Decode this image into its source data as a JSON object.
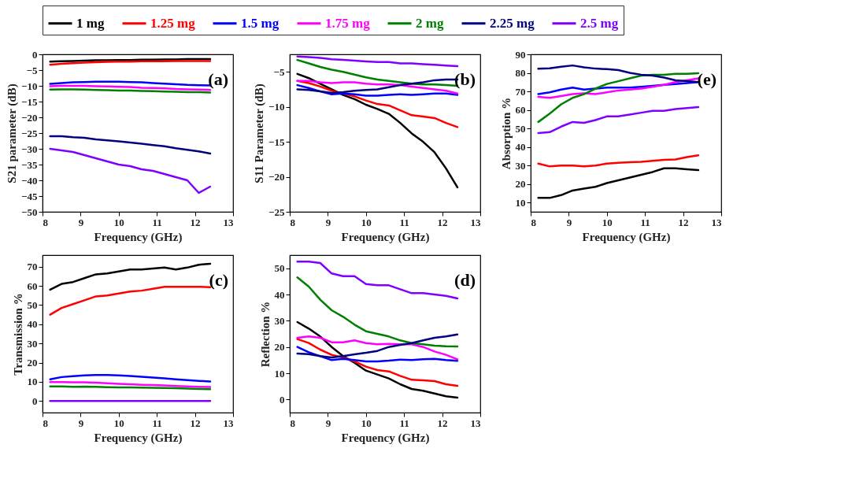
{
  "chart_data": [
    {
      "type": "line",
      "xlabel": "Frequency (GHz)",
      "ylabel": "S21 parameter (dB)",
      "annotations": [
        "(a)"
      ],
      "legend": "top",
      "grid": false,
      "xlim": [
        8,
        13
      ],
      "xticks": [
        8,
        9,
        10,
        11,
        12,
        13
      ],
      "ylim": [
        -50,
        0
      ],
      "yticks": [
        -50,
        -45,
        -40,
        -35,
        -30,
        -25,
        -20,
        -15,
        -10,
        -5,
        0
      ],
      "x": [
        8.2,
        8.5,
        8.8,
        9.1,
        9.4,
        9.7,
        10.0,
        10.3,
        10.6,
        10.9,
        11.2,
        11.5,
        11.8,
        12.1,
        12.4
      ],
      "series": [
        {
          "name": "1 mg",
          "color": "#000000",
          "values": [
            -2.3,
            -2.2,
            -2.1,
            -2.0,
            -1.9,
            -1.9,
            -1.8,
            -1.8,
            -1.7,
            -1.7,
            -1.6,
            -1.6,
            -1.5,
            -1.5,
            -1.5
          ]
        },
        {
          "name": "1.25 mg",
          "color": "#ff0000",
          "values": [
            -3.3,
            -3.0,
            -2.8,
            -2.6,
            -2.5,
            -2.4,
            -2.3,
            -2.3,
            -2.2,
            -2.2,
            -2.2,
            -2.1,
            -2.1,
            -2.1,
            -2.1
          ]
        },
        {
          "name": "1.5 mg",
          "color": "#0000ff",
          "values": [
            -9.4,
            -9.1,
            -8.9,
            -8.8,
            -8.7,
            -8.7,
            -8.7,
            -8.8,
            -8.9,
            -9.1,
            -9.3,
            -9.5,
            -9.7,
            -9.8,
            -9.9
          ]
        },
        {
          "name": "1.75 mg",
          "color": "#ff00ff",
          "values": [
            -10.1,
            -10.0,
            -10.0,
            -10.0,
            -10.1,
            -10.2,
            -10.3,
            -10.4,
            -10.6,
            -10.7,
            -10.8,
            -11.0,
            -11.1,
            -11.2,
            -11.3
          ]
        },
        {
          "name": "2 mg",
          "color": "#008000",
          "values": [
            -11.2,
            -11.1,
            -11.1,
            -11.2,
            -11.3,
            -11.4,
            -11.5,
            -11.5,
            -11.6,
            -11.7,
            -11.8,
            -11.9,
            -12.0,
            -12.0,
            -12.1
          ]
        },
        {
          "name": "2.25 mg",
          "color": "#000080",
          "values": [
            -26,
            -26,
            -26.3,
            -26.5,
            -27,
            -27.3,
            -27.6,
            -28,
            -28.4,
            -28.8,
            -29.2,
            -29.8,
            -30.3,
            -30.8,
            -31.5
          ]
        },
        {
          "name": "2.5 mg",
          "color": "#8000ff",
          "values": [
            -30,
            -30.5,
            -31,
            -32,
            -33,
            -34,
            -35,
            -35.5,
            -36.5,
            -37,
            -38,
            -39,
            -40,
            -44,
            -42
          ]
        }
      ]
    },
    {
      "type": "line",
      "xlabel": "Frequency (GHz)",
      "ylabel": "S11 Parameter (dB)",
      "annotations": [
        "(b)"
      ],
      "grid": false,
      "xlim": [
        8,
        13
      ],
      "xticks": [
        8,
        9,
        10,
        11,
        12,
        13
      ],
      "ylim": [
        -25,
        -2.5
      ],
      "yticks": [
        -25,
        -20,
        -15,
        -10,
        -5
      ],
      "x": [
        8.2,
        8.5,
        8.8,
        9.1,
        9.4,
        9.7,
        10.0,
        10.3,
        10.6,
        10.9,
        11.2,
        11.5,
        11.8,
        12.1,
        12.4
      ],
      "series": [
        {
          "color": "#000000",
          "values": [
            -5.3,
            -5.9,
            -6.7,
            -7.5,
            -8.3,
            -8.9,
            -9.7,
            -10.3,
            -11.0,
            -12.3,
            -13.8,
            -15.0,
            -16.5,
            -18.8,
            -21.5
          ]
        },
        {
          "color": "#ff0000",
          "values": [
            -6.3,
            -6.6,
            -7.1,
            -7.7,
            -8.1,
            -8.5,
            -9.1,
            -9.6,
            -9.8,
            -10.5,
            -11.2,
            -11.4,
            -11.6,
            -12.3,
            -12.9
          ]
        },
        {
          "color": "#0000ff",
          "values": [
            -6.9,
            -7.3,
            -7.8,
            -8.2,
            -8.1,
            -8.2,
            -8.4,
            -8.4,
            -8.3,
            -8.2,
            -8.3,
            -8.2,
            -8.1,
            -8.1,
            -8.3
          ]
        },
        {
          "color": "#ff00ff",
          "values": [
            -6.3,
            -6.3,
            -6.5,
            -6.6,
            -6.5,
            -6.5,
            -6.7,
            -6.8,
            -6.8,
            -6.9,
            -7.1,
            -7.3,
            -7.5,
            -7.7,
            -8.1
          ]
        },
        {
          "color": "#008000",
          "values": [
            -3.3,
            -3.8,
            -4.3,
            -4.7,
            -5.0,
            -5.4,
            -5.8,
            -6.1,
            -6.3,
            -6.5,
            -6.7,
            -6.8,
            -6.8,
            -6.9,
            -7.0
          ]
        },
        {
          "color": "#000080",
          "values": [
            -7.5,
            -7.6,
            -7.8,
            -8.0,
            -7.9,
            -7.7,
            -7.6,
            -7.5,
            -7.2,
            -6.9,
            -6.7,
            -6.5,
            -6.2,
            -6.1,
            -6.1
          ]
        },
        {
          "color": "#8000ff",
          "values": [
            -2.8,
            -2.9,
            -3.0,
            -3.2,
            -3.3,
            -3.4,
            -3.5,
            -3.6,
            -3.6,
            -3.8,
            -3.8,
            -3.9,
            -4.0,
            -4.1,
            -4.2
          ]
        }
      ]
    },
    {
      "type": "line",
      "xlabel": "Frequency (GHz)",
      "ylabel": "Transmission %",
      "annotations": [
        "(c)"
      ],
      "grid": false,
      "xlim": [
        8,
        13
      ],
      "xticks": [
        8,
        9,
        10,
        11,
        12,
        13
      ],
      "ylim": [
        -6,
        76
      ],
      "yticks": [
        0,
        10,
        20,
        30,
        40,
        50,
        60,
        70
      ],
      "x": [
        8.2,
        8.5,
        8.8,
        9.1,
        9.4,
        9.7,
        10.0,
        10.3,
        10.6,
        10.9,
        11.2,
        11.5,
        11.8,
        12.1,
        12.4
      ],
      "series": [
        {
          "color": "#000000",
          "values": [
            58,
            61,
            62,
            64,
            66,
            66.5,
            67.5,
            68.5,
            68.5,
            69,
            69.5,
            68.5,
            69.5,
            71,
            71.5
          ]
        },
        {
          "color": "#ff0000",
          "values": [
            45,
            48.5,
            50.5,
            52.5,
            54.5,
            55,
            56,
            57,
            57.5,
            58.5,
            59.5,
            59.5,
            59.5,
            59.5,
            59.3
          ]
        },
        {
          "color": "#0000ff",
          "values": [
            11.3,
            12.5,
            13,
            13.4,
            13.6,
            13.6,
            13.4,
            13.1,
            12.7,
            12.2,
            11.8,
            11.3,
            10.9,
            10.5,
            10.2
          ]
        },
        {
          "color": "#ff00ff",
          "values": [
            9.9,
            9.9,
            9.8,
            9.8,
            9.6,
            9.3,
            9.0,
            8.8,
            8.5,
            8.3,
            8.1,
            7.8,
            7.6,
            7.4,
            7.3
          ]
        },
        {
          "color": "#008000",
          "values": [
            7.6,
            7.6,
            7.4,
            7.5,
            7.4,
            7.2,
            7.1,
            7.1,
            7.0,
            6.9,
            6.8,
            6.7,
            6.5,
            6.3,
            6.2
          ]
        },
        {
          "color": "#8000ff",
          "values": [
            0,
            0,
            0,
            0,
            0,
            0,
            0,
            0,
            0,
            0,
            0,
            0,
            0,
            0,
            0
          ]
        }
      ]
    },
    {
      "type": "line",
      "xlabel": "Frequency (GHz)",
      "ylabel": "Reflection %",
      "annotations": [
        "(d)"
      ],
      "grid": false,
      "xlim": [
        8,
        13
      ],
      "xticks": [
        8,
        9,
        10,
        11,
        12,
        13
      ],
      "ylim": [
        -5,
        55
      ],
      "yticks": [
        0,
        10,
        20,
        30,
        40,
        50
      ],
      "x": [
        8.2,
        8.5,
        8.8,
        9.1,
        9.4,
        9.7,
        10.0,
        10.3,
        10.6,
        10.9,
        11.2,
        11.5,
        11.8,
        12.1,
        12.4
      ],
      "series": [
        {
          "color": "#000000",
          "values": [
            29.5,
            27,
            24,
            20,
            16.5,
            14,
            11,
            9.5,
            8,
            5.8,
            4,
            3.3,
            2.3,
            1.2,
            0.7
          ]
        },
        {
          "color": "#ff0000",
          "values": [
            23,
            21.5,
            19,
            17,
            16,
            14.5,
            12.5,
            11.2,
            10.7,
            9,
            7.5,
            7.3,
            7,
            5.8,
            5.2
          ]
        },
        {
          "color": "#0000ff",
          "values": [
            20,
            18,
            16.5,
            15,
            15.5,
            15,
            14.5,
            14.5,
            14.8,
            15.2,
            15,
            15.3,
            15.5,
            15,
            14.7
          ]
        },
        {
          "color": "#ff00ff",
          "values": [
            23.5,
            24,
            23.5,
            21.8,
            21.8,
            22.5,
            21.5,
            21,
            21.2,
            21,
            21,
            20,
            18.3,
            17,
            15.3
          ]
        },
        {
          "color": "#008000",
          "values": [
            46.5,
            43,
            38,
            34,
            31.5,
            28.5,
            26,
            25,
            24,
            22.5,
            21.5,
            21,
            20.5,
            20.3,
            20.2
          ]
        },
        {
          "color": "#000080",
          "values": [
            17.5,
            17.3,
            16.5,
            16,
            16.5,
            17.2,
            17.8,
            18.5,
            20,
            20.8,
            21.5,
            22.5,
            23.5,
            24,
            24.8
          ]
        },
        {
          "color": "#8000ff",
          "values": [
            52.5,
            52.5,
            52,
            48,
            47,
            47,
            44,
            43.5,
            43.5,
            42,
            40.5,
            40.5,
            40,
            39.5,
            38.5
          ]
        }
      ]
    },
    {
      "type": "line",
      "xlabel": "Frequency (GHz)",
      "ylabel": "Absorption %",
      "annotations": [
        "(e)"
      ],
      "grid": false,
      "xlim": [
        8,
        13
      ],
      "xticks": [
        8,
        9,
        10,
        11,
        12,
        13
      ],
      "ylim": [
        5,
        90
      ],
      "yticks": [
        10,
        20,
        30,
        40,
        50,
        60,
        70,
        80,
        90
      ],
      "x": [
        8.2,
        8.5,
        8.8,
        9.1,
        9.4,
        9.7,
        10.0,
        10.3,
        10.6,
        10.9,
        11.2,
        11.5,
        11.8,
        12.1,
        12.4
      ],
      "series": [
        {
          "color": "#000000",
          "values": [
            12.5,
            12.5,
            14,
            16.5,
            17.5,
            18.5,
            20.5,
            22,
            23.5,
            25,
            26.5,
            28.5,
            28.5,
            28,
            27.5
          ]
        },
        {
          "color": "#ff0000",
          "values": [
            31,
            29.5,
            30,
            30,
            29.5,
            30,
            31,
            31.5,
            31.8,
            32,
            32.5,
            33,
            33.3,
            34.5,
            35.5
          ]
        },
        {
          "color": "#0000ff",
          "values": [
            68.5,
            69.5,
            71,
            72,
            71,
            71.5,
            72,
            72,
            72,
            72.5,
            73,
            73.5,
            74,
            74.5,
            75
          ]
        },
        {
          "color": "#ff00ff",
          "values": [
            67,
            66.5,
            67.5,
            68.5,
            69,
            68.5,
            69.5,
            70.5,
            71,
            71.5,
            72.5,
            73.5,
            75,
            76,
            77
          ]
        },
        {
          "color": "#008000",
          "values": [
            53.5,
            58,
            63,
            66.5,
            68.5,
            71.5,
            74,
            75.5,
            77,
            78.5,
            79,
            79,
            79.5,
            79.5,
            79.8
          ]
        },
        {
          "color": "#000080",
          "values": [
            82.2,
            82.5,
            83.3,
            84,
            83,
            82.3,
            82,
            81.5,
            80,
            79,
            78.5,
            77.5,
            76,
            75.5,
            75
          ]
        },
        {
          "color": "#8000ff",
          "values": [
            47.5,
            48,
            51,
            53.5,
            53,
            54.5,
            56.5,
            56.5,
            57.5,
            58.5,
            59.5,
            59.5,
            60.5,
            61,
            61.5
          ]
        }
      ]
    }
  ]
}
